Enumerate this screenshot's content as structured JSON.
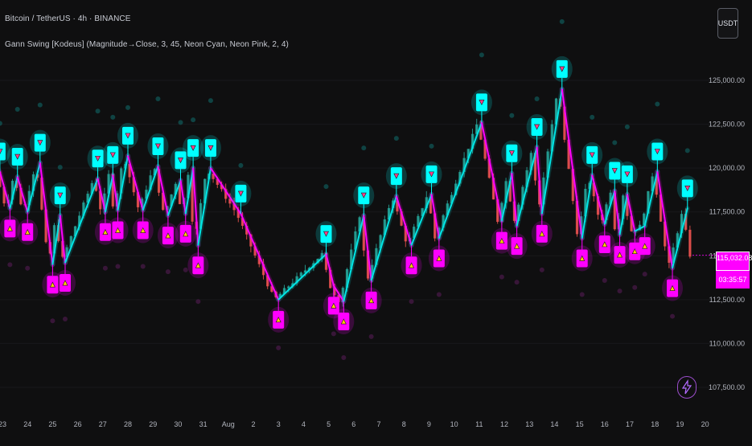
{
  "header": {
    "symbol_title": "Bitcoin / TetherUS · 4h · BINANCE",
    "indicator_title": "Gann Swing [Kodeus] (Magnitude→Close, 3, 45, Neon Cyan, Neon Pink, 2, 4)"
  },
  "currency_button": {
    "label": "USDT"
  },
  "price_label": {
    "value": "115,032.08",
    "countdown": "03:35:57",
    "color": "#ff00ff"
  },
  "colors": {
    "background": "#0f0f10",
    "up_candle": "#26a69a",
    "down_candle": "#ef5350",
    "swing_up_line": "#00e5e5",
    "swing_down_line": "#ff00ff",
    "swing_high_marker": "#00ffff",
    "swing_low_marker": "#ff00ff"
  },
  "icons": {
    "bolt": "lightning-bolt-icon"
  },
  "chart_data": {
    "type": "candlestick",
    "title": "",
    "xlabel": "",
    "ylabel": "",
    "ylim": [
      106500,
      127500
    ],
    "y_ticks": [
      "107,500.00",
      "110,000.00",
      "112,500.00",
      "115,000.00",
      "117,500.00",
      "120,000.00",
      "122,500.00",
      "125,000.00"
    ],
    "y_tick_values": [
      107500,
      110000,
      112500,
      115000,
      117500,
      120000,
      122500,
      125000
    ],
    "x_ticks": [
      {
        "label": "23",
        "day": 23
      },
      {
        "label": "24",
        "day": 24
      },
      {
        "label": "25",
        "day": 25
      },
      {
        "label": "26",
        "day": 26
      },
      {
        "label": "27",
        "day": 27
      },
      {
        "label": "28",
        "day": 28
      },
      {
        "label": "29",
        "day": 29
      },
      {
        "label": "30",
        "day": 30
      },
      {
        "label": "31",
        "day": 31
      },
      {
        "label": "Aug",
        "day": 32
      },
      {
        "label": "2",
        "day": 33
      },
      {
        "label": "3",
        "day": 34
      },
      {
        "label": "4",
        "day": 35
      },
      {
        "label": "5",
        "day": 36
      },
      {
        "label": "6",
        "day": 37
      },
      {
        "label": "7",
        "day": 38
      },
      {
        "label": "8",
        "day": 39
      },
      {
        "label": "9",
        "day": 40
      },
      {
        "label": "10",
        "day": 41
      },
      {
        "label": "11",
        "day": 42
      },
      {
        "label": "12",
        "day": 43
      },
      {
        "label": "13",
        "day": 44
      },
      {
        "label": "14",
        "day": 45
      },
      {
        "label": "15",
        "day": 46
      },
      {
        "label": "16",
        "day": 47
      },
      {
        "label": "17",
        "day": 48
      },
      {
        "label": "18",
        "day": 49
      },
      {
        "label": "19",
        "day": 50
      },
      {
        "label": "20",
        "day": 51
      }
    ],
    "x_range_days": [
      23,
      51.1
    ],
    "swings": [
      {
        "day": 22.9,
        "price": 119800,
        "type": "high"
      },
      {
        "day": 23.3,
        "price": 117700,
        "type": "low"
      },
      {
        "day": 23.6,
        "price": 119500,
        "type": "high"
      },
      {
        "day": 24.0,
        "price": 117500,
        "type": "low"
      },
      {
        "day": 24.5,
        "price": 120300,
        "type": "high"
      },
      {
        "day": 25.0,
        "price": 114500,
        "type": "low"
      },
      {
        "day": 25.3,
        "price": 117300,
        "type": "high"
      },
      {
        "day": 25.5,
        "price": 114600,
        "type": "low"
      },
      {
        "day": 26.8,
        "price": 119400,
        "type": "high"
      },
      {
        "day": 27.1,
        "price": 117500,
        "type": "low"
      },
      {
        "day": 27.4,
        "price": 119600,
        "type": "high"
      },
      {
        "day": 27.6,
        "price": 117600,
        "type": "low"
      },
      {
        "day": 28.0,
        "price": 120700,
        "type": "high"
      },
      {
        "day": 28.6,
        "price": 117600,
        "type": "low"
      },
      {
        "day": 29.2,
        "price": 120100,
        "type": "high"
      },
      {
        "day": 29.6,
        "price": 117300,
        "type": "low"
      },
      {
        "day": 30.1,
        "price": 119300,
        "type": "high"
      },
      {
        "day": 30.3,
        "price": 117400,
        "type": "low"
      },
      {
        "day": 30.6,
        "price": 120000,
        "type": "high"
      },
      {
        "day": 30.8,
        "price": 115600,
        "type": "low"
      },
      {
        "day": 31.3,
        "price": 120000,
        "type": "high"
      },
      {
        "day": 32.5,
        "price": 117400,
        "type": "high"
      },
      {
        "day": 34.0,
        "price": 112500,
        "type": "low"
      },
      {
        "day": 35.9,
        "price": 115100,
        "type": "high"
      },
      {
        "day": 36.2,
        "price": 113300,
        "type": "low"
      },
      {
        "day": 36.6,
        "price": 112400,
        "type": "low"
      },
      {
        "day": 37.4,
        "price": 117300,
        "type": "high"
      },
      {
        "day": 37.7,
        "price": 113600,
        "type": "low"
      },
      {
        "day": 38.7,
        "price": 118400,
        "type": "high"
      },
      {
        "day": 39.3,
        "price": 115600,
        "type": "low"
      },
      {
        "day": 40.1,
        "price": 118500,
        "type": "high"
      },
      {
        "day": 40.4,
        "price": 116000,
        "type": "low"
      },
      {
        "day": 42.1,
        "price": 122600,
        "type": "high"
      },
      {
        "day": 42.9,
        "price": 117000,
        "type": "low"
      },
      {
        "day": 43.3,
        "price": 119700,
        "type": "high"
      },
      {
        "day": 43.5,
        "price": 116700,
        "type": "low"
      },
      {
        "day": 44.3,
        "price": 121200,
        "type": "high"
      },
      {
        "day": 44.5,
        "price": 117400,
        "type": "low"
      },
      {
        "day": 45.3,
        "price": 124500,
        "type": "high"
      },
      {
        "day": 46.1,
        "price": 116000,
        "type": "low"
      },
      {
        "day": 46.5,
        "price": 119600,
        "type": "high"
      },
      {
        "day": 47.0,
        "price": 116800,
        "type": "low"
      },
      {
        "day": 47.4,
        "price": 118700,
        "type": "high"
      },
      {
        "day": 47.6,
        "price": 116200,
        "type": "low"
      },
      {
        "day": 47.9,
        "price": 118500,
        "type": "high"
      },
      {
        "day": 48.2,
        "price": 116400,
        "type": "low"
      },
      {
        "day": 48.6,
        "price": 116700,
        "type": "low"
      },
      {
        "day": 49.1,
        "price": 119800,
        "type": "high"
      },
      {
        "day": 49.7,
        "price": 114300,
        "type": "low"
      },
      {
        "day": 50.3,
        "price": 117700,
        "type": "high"
      }
    ],
    "series": [
      {
        "name": "",
        "last_day": 50.5,
        "last_close": 115032.08
      }
    ]
  }
}
